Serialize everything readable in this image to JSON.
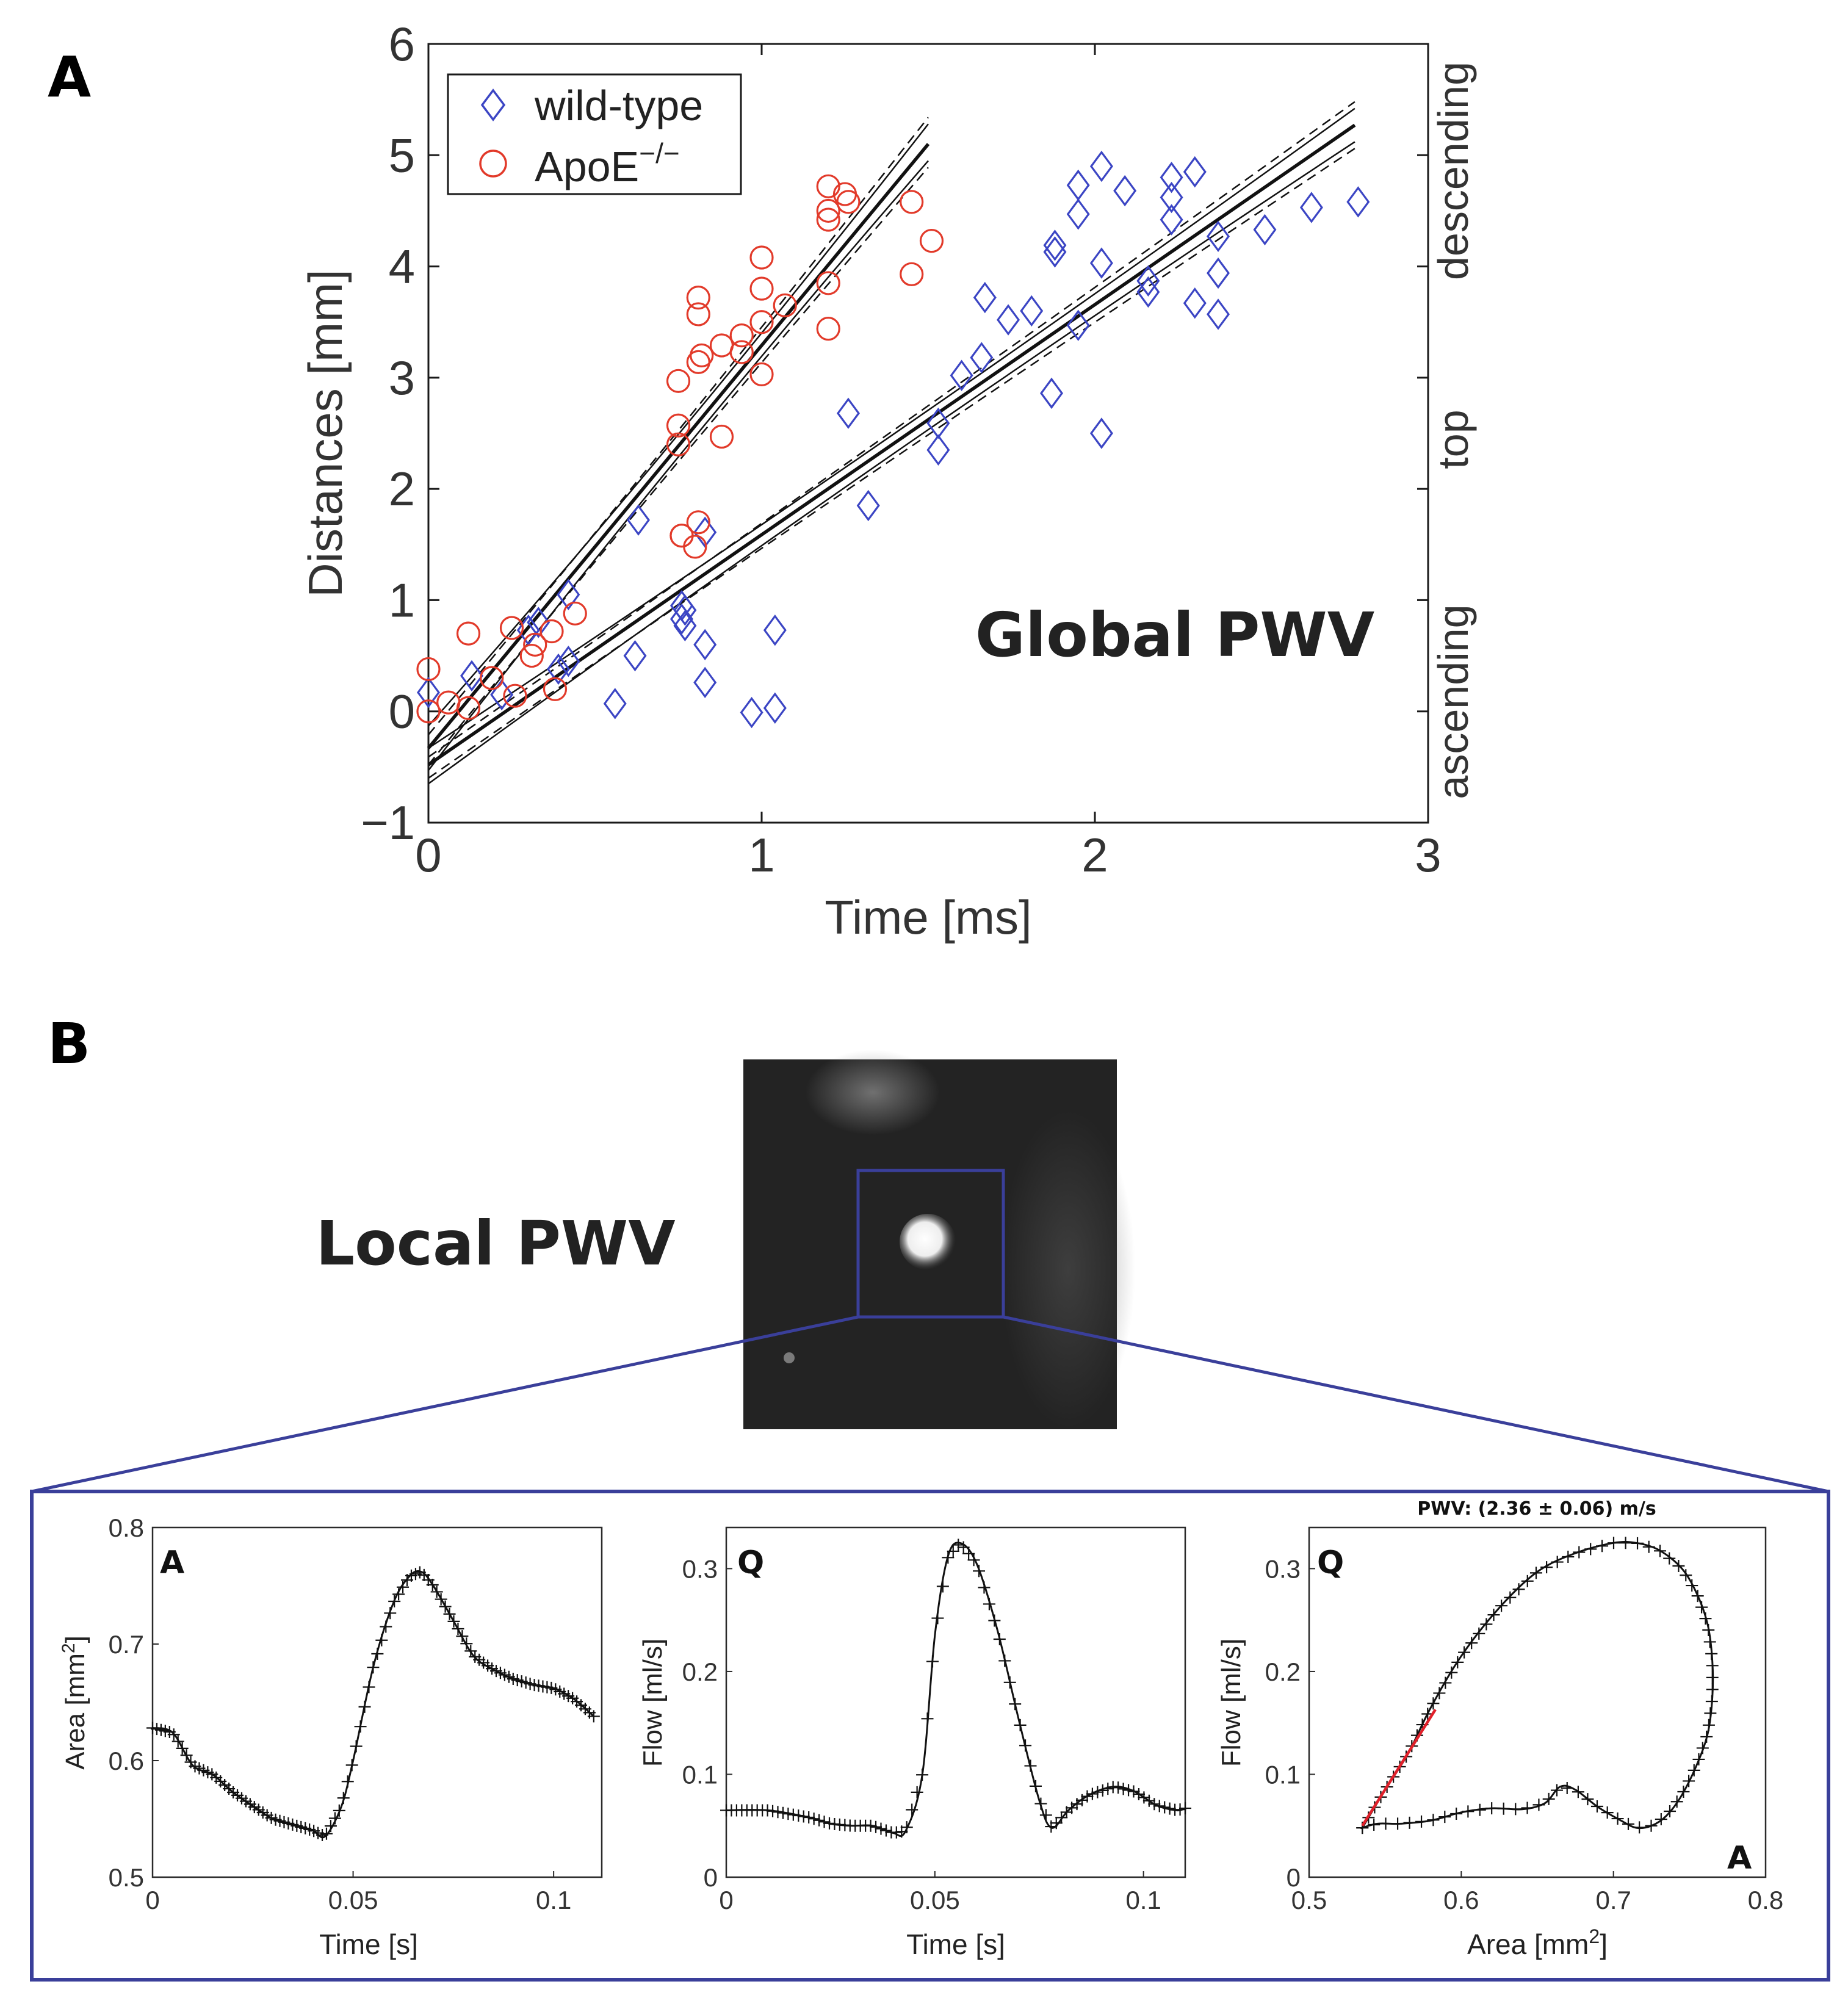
{
  "panel_a": {
    "letter": "A",
    "annotation": "Global PWV"
  },
  "panel_b": {
    "letter": "B",
    "title": "Local PWV"
  },
  "colors": {
    "wildtype": "#3b45c4",
    "apoe": "#e23a2a",
    "frame": "#3a3f9a",
    "fit_red": "#e0202a"
  },
  "chart_data": [
    {
      "id": "global",
      "type": "scatter",
      "xlabel": "Time [ms]",
      "ylabel": "Distances [mm]",
      "xlim": [
        0,
        3
      ],
      "ylim": [
        -1,
        6
      ],
      "xticks": [
        "0",
        "1",
        "2",
        "3"
      ],
      "yticks": [
        "−1",
        "0",
        "1",
        "2",
        "3",
        "4",
        "5",
        "6"
      ],
      "right_labels": [
        "descending",
        "top",
        "ascending"
      ],
      "legend": {
        "placement": "top-left",
        "wildtype": "wild-type",
        "apoe_base": "ApoE",
        "apoe_sup": "−/−"
      },
      "series": [
        {
          "name": "wild-type",
          "marker": "diamond",
          "points": [
            [
              0,
              0.17
            ],
            [
              0.13,
              0.32
            ],
            [
              0.22,
              0.15
            ],
            [
              0.3,
              0.73
            ],
            [
              0.33,
              0.8
            ],
            [
              0.39,
              0.38
            ],
            [
              0.42,
              0.45
            ],
            [
              0.42,
              1.05
            ],
            [
              0.56,
              0.07
            ],
            [
              0.62,
              0.5
            ],
            [
              0.63,
              1.72
            ],
            [
              0.76,
              0.95
            ],
            [
              0.76,
              0.83
            ],
            [
              0.77,
              0.77
            ],
            [
              0.77,
              0.91
            ],
            [
              0.83,
              1.61
            ],
            [
              0.83,
              0.6
            ],
            [
              0.83,
              0.26
            ],
            [
              0.97,
              -0.01
            ],
            [
              1.04,
              0.73
            ],
            [
              1.04,
              0.03
            ],
            [
              1.26,
              2.68
            ],
            [
              1.32,
              1.85
            ],
            [
              1.53,
              2.59
            ],
            [
              1.53,
              2.35
            ],
            [
              1.6,
              3.02
            ],
            [
              1.66,
              3.18
            ],
            [
              1.67,
              3.72
            ],
            [
              1.74,
              3.52
            ],
            [
              1.81,
              3.6
            ],
            [
              1.87,
              2.86
            ],
            [
              1.88,
              4.13
            ],
            [
              1.88,
              4.19
            ],
            [
              1.95,
              4.47
            ],
            [
              1.95,
              3.47
            ],
            [
              1.95,
              4.73
            ],
            [
              2.02,
              4.9
            ],
            [
              2.02,
              2.5
            ],
            [
              2.02,
              4.03
            ],
            [
              2.09,
              4.68
            ],
            [
              2.16,
              3.87
            ],
            [
              2.16,
              3.77
            ],
            [
              2.23,
              4.8
            ],
            [
              2.23,
              4.42
            ],
            [
              2.23,
              4.62
            ],
            [
              2.3,
              4.85
            ],
            [
              2.3,
              3.67
            ],
            [
              2.37,
              3.57
            ],
            [
              2.37,
              4.27
            ],
            [
              2.37,
              3.94
            ],
            [
              2.51,
              4.33
            ],
            [
              2.65,
              4.53
            ],
            [
              2.79,
              4.58
            ]
          ]
        },
        {
          "name": "ApoE-/-",
          "marker": "circle",
          "points": [
            [
              0,
              0.38
            ],
            [
              0,
              0
            ],
            [
              0.06,
              0.08
            ],
            [
              0.12,
              0.03
            ],
            [
              0.12,
              0.7
            ],
            [
              0.19,
              0.3
            ],
            [
              0.25,
              0.75
            ],
            [
              0.26,
              0.14
            ],
            [
              0.31,
              0.5
            ],
            [
              0.32,
              0.6
            ],
            [
              0.37,
              0.72
            ],
            [
              0.38,
              0.2
            ],
            [
              0.44,
              0.88
            ],
            [
              0.75,
              2.97
            ],
            [
              0.75,
              2.57
            ],
            [
              0.75,
              2.4
            ],
            [
              0.76,
              1.58
            ],
            [
              0.76,
              1.58
            ],
            [
              0.8,
              1.48
            ],
            [
              0.81,
              3.72
            ],
            [
              0.81,
              3.57
            ],
            [
              0.81,
              3.14
            ],
            [
              0.81,
              1.7
            ],
            [
              0.82,
              3.2
            ],
            [
              0.88,
              3.29
            ],
            [
              0.88,
              2.47
            ],
            [
              0.94,
              3.38
            ],
            [
              0.94,
              3.23
            ],
            [
              1,
              4.08
            ],
            [
              1,
              3.8
            ],
            [
              1,
              3.5
            ],
            [
              1,
              3.03
            ],
            [
              1.07,
              3.65
            ],
            [
              1.2,
              4.72
            ],
            [
              1.2,
              4.5
            ],
            [
              1.2,
              4.42
            ],
            [
              1.2,
              3.85
            ],
            [
              1.2,
              3.44
            ],
            [
              1.25,
              4.65
            ],
            [
              1.26,
              4.58
            ],
            [
              1.45,
              4.58
            ],
            [
              1.45,
              3.93
            ],
            [
              1.51,
              4.23
            ]
          ]
        }
      ],
      "fits": [
        {
          "series": "ApoE-/-",
          "x": [
            0,
            1.5
          ],
          "y": [
            -0.33,
            5.1
          ],
          "ci_upper": [
            -0.13,
            5.28
          ],
          "ci_lower": [
            -0.53,
            4.95
          ]
        },
        {
          "series": "wild-type",
          "x": [
            0,
            2.78
          ],
          "y": [
            -0.48,
            5.27
          ],
          "ci_upper": [
            -0.33,
            5.42
          ],
          "ci_lower": [
            -0.65,
            5.12
          ]
        }
      ]
    },
    {
      "id": "area",
      "type": "line",
      "corner_label": "A",
      "xlabel": "Time [s]",
      "ylabel_base": "Area [mm",
      "ylabel_sup": "2",
      "ylabel_end": "]",
      "xlim": [
        0,
        0.112
      ],
      "ylim": [
        0.5,
        0.8
      ],
      "xticks": [
        "0",
        "0.05",
        "0.1"
      ],
      "xtick_values": [
        0,
        0.05,
        0.1
      ],
      "yticks": [
        "0.5",
        "0.6",
        "0.7",
        "0.8"
      ],
      "ytick_values": [
        0.5,
        0.6,
        0.7,
        0.8
      ],
      "curve_t": [
        0,
        0.005,
        0.01,
        0.015,
        0.02,
        0.025,
        0.03,
        0.035,
        0.04,
        0.043,
        0.047,
        0.05,
        0.055,
        0.06,
        0.064,
        0.067,
        0.07,
        0.075,
        0.08,
        0.085,
        0.09,
        0.095,
        0.1,
        0.105,
        0.11
      ],
      "curve_y": [
        0.628,
        0.624,
        0.596,
        0.588,
        0.573,
        0.561,
        0.55,
        0.545,
        0.54,
        0.535,
        0.56,
        0.6,
        0.68,
        0.735,
        0.758,
        0.762,
        0.75,
        0.72,
        0.69,
        0.678,
        0.67,
        0.665,
        0.662,
        0.653,
        0.638
      ],
      "marker_count": 105
    },
    {
      "id": "flow",
      "type": "line",
      "corner_label": "Q",
      "xlabel": "Time [s]",
      "ylabel": "Flow [ml/s]",
      "xlim": [
        0,
        0.11
      ],
      "ylim": [
        0,
        0.34
      ],
      "xticks": [
        "0",
        "0.05",
        "0.1"
      ],
      "xtick_values": [
        0,
        0.05,
        0.1
      ],
      "yticks": [
        "0",
        "0.1",
        "0.2",
        "0.3"
      ],
      "ytick_values": [
        0,
        0.1,
        0.2,
        0.3
      ],
      "curve_t": [
        0,
        0.01,
        0.02,
        0.025,
        0.03,
        0.035,
        0.04,
        0.043,
        0.047,
        0.05,
        0.053,
        0.056,
        0.06,
        0.065,
        0.07,
        0.075,
        0.078,
        0.082,
        0.087,
        0.093,
        0.098,
        0.103,
        0.108,
        0.11
      ],
      "curve_y": [
        0.065,
        0.065,
        0.058,
        0.052,
        0.05,
        0.05,
        0.043,
        0.045,
        0.1,
        0.235,
        0.31,
        0.325,
        0.305,
        0.24,
        0.155,
        0.075,
        0.048,
        0.065,
        0.08,
        0.088,
        0.083,
        0.07,
        0.065,
        0.067
      ],
      "marker_count": 90
    },
    {
      "id": "qa_loop",
      "type": "line",
      "title": "PWV: (2.36 ± 0.06) m/s",
      "corner_label": "Q",
      "corner_label_2": "A",
      "xlabel_base": "Area [mm",
      "xlabel_sup": "2",
      "xlabel_end": "]",
      "ylabel": "Flow [ml/s]",
      "xlim": [
        0.5,
        0.8
      ],
      "ylim": [
        0,
        0.34
      ],
      "xticks": [
        "0.5",
        "0.6",
        "0.7",
        "0.8"
      ],
      "xtick_values": [
        0.5,
        0.6,
        0.7,
        0.8
      ],
      "yticks": [
        "0",
        "0.1",
        "0.2",
        "0.3"
      ],
      "ytick_values": [
        0,
        0.1,
        0.2,
        0.3
      ],
      "loop_x": [
        0.535,
        0.55,
        0.565,
        0.58,
        0.6,
        0.625,
        0.65,
        0.675,
        0.7,
        0.715,
        0.73,
        0.745,
        0.755,
        0.762,
        0.765,
        0.765,
        0.762,
        0.755,
        0.745,
        0.735,
        0.725,
        0.715,
        0.705,
        0.69,
        0.675,
        0.665,
        0.655,
        0.64,
        0.62,
        0.6,
        0.58,
        0.56,
        0.545,
        0.535,
        0.535
      ],
      "loop_y": [
        0.048,
        0.085,
        0.12,
        0.165,
        0.215,
        0.262,
        0.297,
        0.315,
        0.325,
        0.325,
        0.318,
        0.3,
        0.275,
        0.245,
        0.21,
        0.175,
        0.14,
        0.11,
        0.08,
        0.06,
        0.05,
        0.048,
        0.055,
        0.068,
        0.085,
        0.088,
        0.072,
        0.066,
        0.067,
        0.063,
        0.055,
        0.052,
        0.052,
        0.048,
        0.048
      ],
      "fit_x": [
        0.535,
        0.583
      ],
      "fit_y": [
        0.05,
        0.163
      ],
      "marker_count": 90
    }
  ]
}
